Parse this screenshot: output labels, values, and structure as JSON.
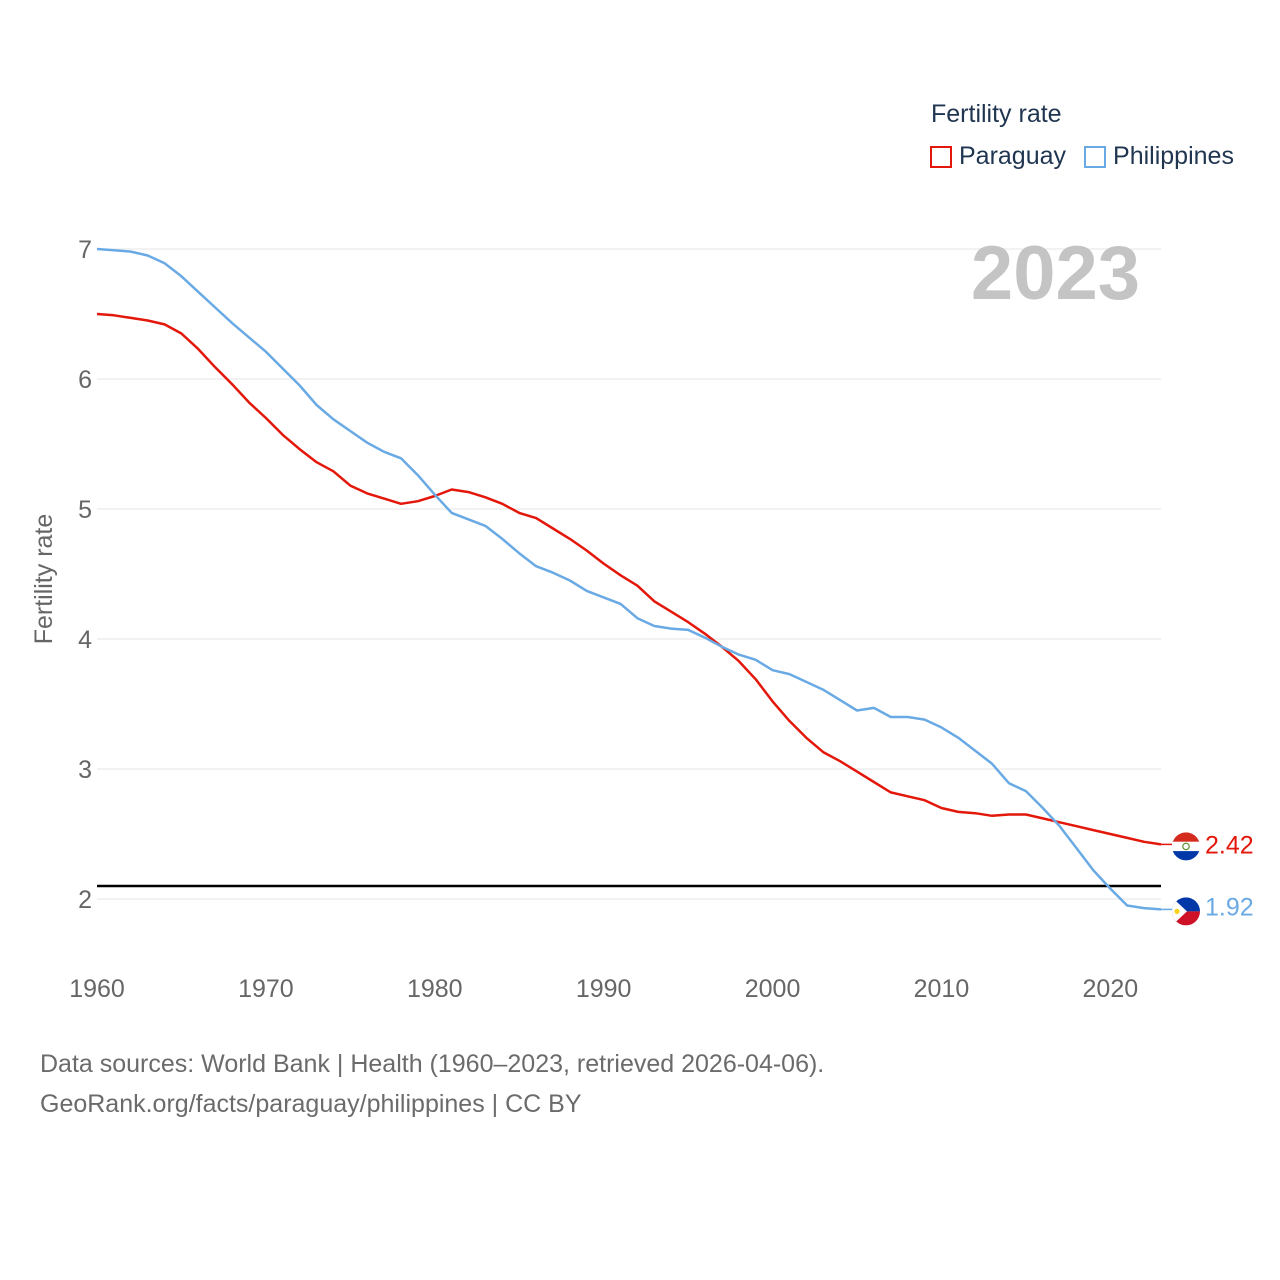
{
  "legend": {
    "title": "Fertility rate",
    "items": [
      {
        "label": "Paraguay",
        "color": "#e3170a"
      },
      {
        "label": "Philippines",
        "color": "#6aaae4"
      }
    ]
  },
  "footer": {
    "line1": "Data sources: World Bank | Health (1960–2023, retrieved 2026-04-06).",
    "line2": "GeoRank.org/facts/paraguay/philippines | CC BY"
  },
  "chart_data": {
    "type": "line",
    "title": "Fertility rate",
    "year_label": "2023",
    "xlabel": "",
    "ylabel": "Fertility rate",
    "xlim": [
      1960,
      2023
    ],
    "ylim": [
      1.5,
      7.1
    ],
    "x_ticks": [
      1960,
      1970,
      1980,
      1990,
      2000,
      2010,
      2020
    ],
    "y_ticks": [
      2,
      3,
      4,
      5,
      6,
      7
    ],
    "reference_line": 2.1,
    "x": [
      1960,
      1961,
      1962,
      1963,
      1964,
      1965,
      1966,
      1967,
      1968,
      1969,
      1970,
      1971,
      1972,
      1973,
      1974,
      1975,
      1976,
      1977,
      1978,
      1979,
      1980,
      1981,
      1982,
      1983,
      1984,
      1985,
      1986,
      1987,
      1988,
      1989,
      1990,
      1991,
      1992,
      1993,
      1994,
      1995,
      1996,
      1997,
      1998,
      1999,
      2000,
      2001,
      2002,
      2003,
      2004,
      2005,
      2006,
      2007,
      2008,
      2009,
      2010,
      2011,
      2012,
      2013,
      2014,
      2015,
      2016,
      2017,
      2018,
      2019,
      2020,
      2021,
      2022,
      2023
    ],
    "series": [
      {
        "name": "Paraguay",
        "color": "#e3170a",
        "end_label": "2.42",
        "values": [
          6.5,
          6.49,
          6.47,
          6.45,
          6.42,
          6.35,
          6.23,
          6.09,
          5.96,
          5.82,
          5.7,
          5.57,
          5.46,
          5.36,
          5.29,
          5.18,
          5.12,
          5.08,
          5.04,
          5.06,
          5.1,
          5.15,
          5.13,
          5.09,
          5.04,
          4.97,
          4.93,
          4.85,
          4.77,
          4.68,
          4.58,
          4.49,
          4.41,
          4.29,
          4.21,
          4.13,
          4.04,
          3.94,
          3.83,
          3.69,
          3.52,
          3.37,
          3.24,
          3.13,
          3.06,
          2.98,
          2.9,
          2.82,
          2.79,
          2.76,
          2.7,
          2.67,
          2.66,
          2.64,
          2.65,
          2.65,
          2.62,
          2.59,
          2.56,
          2.53,
          2.5,
          2.47,
          2.44,
          2.42
        ]
      },
      {
        "name": "Philippines",
        "color": "#6aaae4",
        "end_label": "1.92",
        "values": [
          7.0,
          6.99,
          6.98,
          6.95,
          6.89,
          6.79,
          6.67,
          6.55,
          6.43,
          6.32,
          6.21,
          6.08,
          5.95,
          5.8,
          5.69,
          5.6,
          5.51,
          5.44,
          5.39,
          5.26,
          5.11,
          4.97,
          4.92,
          4.87,
          4.77,
          4.66,
          4.56,
          4.51,
          4.45,
          4.37,
          4.32,
          4.27,
          4.16,
          4.1,
          4.08,
          4.07,
          4.01,
          3.94,
          3.88,
          3.84,
          3.76,
          3.73,
          3.67,
          3.61,
          3.53,
          3.45,
          3.47,
          3.4,
          3.4,
          3.38,
          3.32,
          3.24,
          3.14,
          3.04,
          2.89,
          2.83,
          2.7,
          2.56,
          2.39,
          2.22,
          2.08,
          1.95,
          1.93,
          1.92
        ]
      }
    ]
  }
}
